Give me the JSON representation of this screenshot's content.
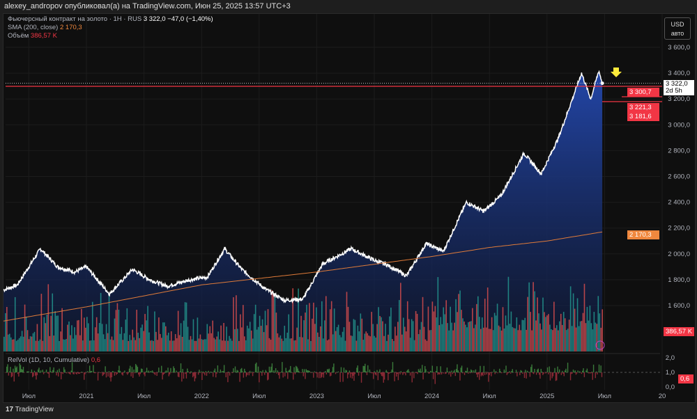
{
  "header": {
    "publisher": "alexey_andropov опубликовал(а) на TradingView.com, Июн 25, 2025 13:57 UTC+3"
  },
  "legend": {
    "symbol": "Фьючерсный контракт на золото · 1H · RUS",
    "price": "3 322,0",
    "change": "−47,0 (−1,40%)",
    "sma_label": "SMA (200, close)",
    "sma_value": "2 170,3",
    "vol_label": "Объём",
    "vol_value": "386,57 K",
    "relvol_label": "RelVol (1D, 10, Cumulative)",
    "relvol_value": "0,6"
  },
  "currency": {
    "code": "USD",
    "mode": "авто"
  },
  "price_labels": {
    "last": "3 322,0",
    "countdown": "2d 5h",
    "l1": "3 300,7",
    "l2": "3 221,3",
    "l3": "3 181,6",
    "sma": "2 170,3",
    "vol": "386,57 K",
    "relvol": "0,6"
  },
  "footer": {
    "brand": "TradingView"
  },
  "colors": {
    "line": "#ffffff",
    "area": "#1e3a8a",
    "sma": "#e07b39",
    "up": "#26a69a",
    "down": "#ef5350",
    "red": "#f23645",
    "arrow": "#ffeb3b"
  },
  "chart_data": {
    "type": "area",
    "yticks": [
      "3 600,0",
      "3 400,0",
      "3 200,0",
      "3 000,0",
      "2 800,0",
      "2 600,0",
      "2 400,0",
      "2 200,0",
      "2 000,0",
      "1 800,0",
      "1 600,0"
    ],
    "ytick_values": [
      3600,
      3400,
      3200,
      3000,
      2800,
      2600,
      2400,
      2200,
      2000,
      1800,
      1600
    ],
    "xticks": [
      "Июл",
      "2021",
      "Июл",
      "2022",
      "Июл",
      "2023",
      "Июл",
      "2024",
      "Июл",
      "2025",
      "Июл",
      "20"
    ],
    "xtick_years": [
      2020.5,
      2021,
      2021.5,
      2022,
      2022.5,
      2023,
      2023.5,
      2024,
      2024.5,
      2025,
      2025.5,
      2026
    ],
    "relvol_ticks": [
      "2,0",
      "1,0",
      "0,0"
    ],
    "price_points": [
      [
        2020.28,
        1720
      ],
      [
        2020.4,
        1760
      ],
      [
        2020.6,
        2040
      ],
      [
        2020.75,
        1900
      ],
      [
        2020.9,
        1860
      ],
      [
        2021.0,
        1900
      ],
      [
        2021.2,
        1690
      ],
      [
        2021.4,
        1880
      ],
      [
        2021.55,
        1800
      ],
      [
        2021.7,
        1750
      ],
      [
        2021.9,
        1800
      ],
      [
        2022.05,
        1820
      ],
      [
        2022.2,
        2040
      ],
      [
        2022.35,
        1880
      ],
      [
        2022.55,
        1730
      ],
      [
        2022.72,
        1640
      ],
      [
        2022.88,
        1650
      ],
      [
        2023.05,
        1920
      ],
      [
        2023.3,
        2040
      ],
      [
        2023.5,
        1950
      ],
      [
        2023.6,
        1920
      ],
      [
        2023.78,
        1830
      ],
      [
        2023.95,
        2080
      ],
      [
        2024.1,
        2020
      ],
      [
        2024.3,
        2400
      ],
      [
        2024.45,
        2330
      ],
      [
        2024.6,
        2450
      ],
      [
        2024.8,
        2780
      ],
      [
        2024.95,
        2620
      ],
      [
        2025.1,
        2900
      ],
      [
        2025.3,
        3400
      ],
      [
        2025.38,
        3200
      ],
      [
        2025.45,
        3420
      ],
      [
        2025.48,
        3322
      ]
    ],
    "sma_points": [
      [
        2020.28,
        1480
      ],
      [
        2021.0,
        1590
      ],
      [
        2022.0,
        1760
      ],
      [
        2023.0,
        1860
      ],
      [
        2024.0,
        1980
      ],
      [
        2024.5,
        2050
      ],
      [
        2025.0,
        2100
      ],
      [
        2025.48,
        2170
      ]
    ],
    "last_price": 3322.0,
    "level_lines": [
      3300.7,
      3221.3,
      3181.6
    ]
  }
}
